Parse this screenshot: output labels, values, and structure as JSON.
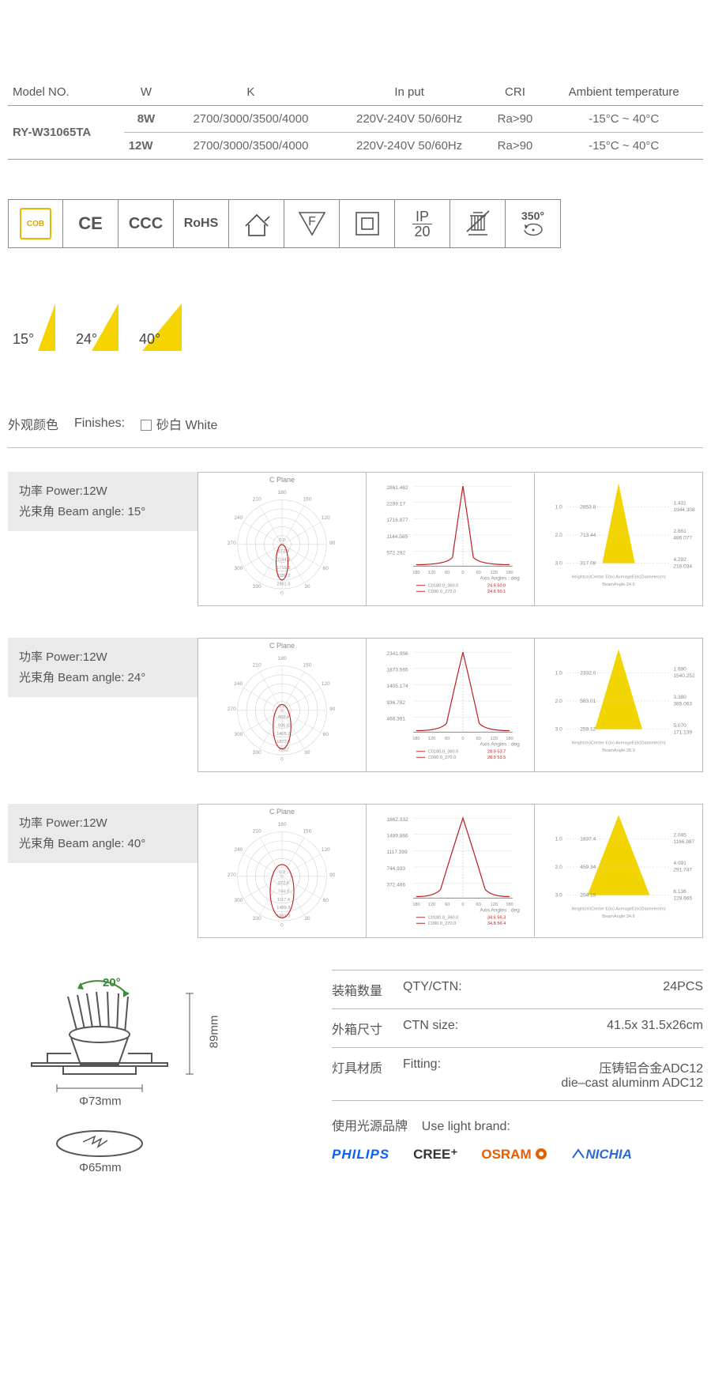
{
  "spec_table": {
    "headers": [
      "Model NO.",
      "W",
      "K",
      "In put",
      "CRI",
      "Ambient temperature"
    ],
    "model_no": "RY-W31065TA",
    "rows": [
      {
        "w": "8W",
        "k": "2700/3000/3500/4000",
        "input": "220V-240V 50/60Hz",
        "cri": "Ra>90",
        "ambient": "-15°C ~ 40°C"
      },
      {
        "w": "12W",
        "k": "2700/3000/3500/4000",
        "input": "220V-240V 50/60Hz",
        "cri": "Ra>90",
        "ambient": "-15°C ~ 40°C"
      }
    ]
  },
  "cert_icons": {
    "cob": "COB",
    "ce": "CE",
    "ccc": "CCC",
    "rohs": "RoHS",
    "indoor": "indoor-use-icon",
    "f": "F",
    "class2": "class-ii-icon",
    "ip": "IP",
    "ip_num": "20",
    "weee": "weee-icon",
    "rot": "350°"
  },
  "beam_angles": [
    {
      "label": "15°",
      "angle": 15,
      "color": "#f5d400"
    },
    {
      "label": "24°",
      "angle": 24,
      "color": "#f5d400"
    },
    {
      "label": "40°",
      "angle": 40,
      "color": "#f5d400"
    }
  ],
  "finishes": {
    "cn": "外观颜色",
    "en": "Finishes:",
    "opt_cn": "砂白",
    "opt_en": "White"
  },
  "photo": [
    {
      "power_cn": "功率 Power:12W",
      "beam_cn": "光束角 Beam angle: 15°",
      "polar": {
        "title": "C Plane",
        "rings": [
          572.3,
          1144.3,
          1715.8,
          2289.2,
          2861.5
        ],
        "deg_labels": [
          "180",
          "150",
          "120",
          "90",
          "60",
          "30",
          "0",
          "330",
          "300",
          "270",
          "240",
          "210"
        ]
      },
      "curve": {
        "y": [
          2861.462,
          2289.17,
          1716.877,
          1144.585,
          572.292
        ],
        "x": [
          "180",
          "120",
          "60",
          "0",
          "60",
          "120",
          "180"
        ],
        "axis_label": "Axis Angles : deg",
        "legend": [
          "C0180.0_360.0",
          "C090.0_270.0"
        ],
        "legend_color": "#c02020",
        "val1": "24.6  50.0",
        "val2": "24.6  50.1"
      },
      "cone": {
        "color": "#f2d400",
        "rows": [
          {
            "h": "1.0",
            "c": "2853.8",
            "a": "1.431",
            "d": "1944.308"
          },
          {
            "h": "2.0",
            "c": "713.44",
            "a": "2.861",
            "d": "486.077"
          },
          {
            "h": "3.0",
            "c": "317.08",
            "a": "4.292",
            "d": "216.034"
          }
        ],
        "foot": "Height(m)Center E(lx)   AverageE(lx)Diameter(m)",
        "beam": "BeamAngle:24.6"
      }
    },
    {
      "power_cn": "功率 Power:12W",
      "beam_cn": "光束角 Beam angle: 24°",
      "polar": {
        "title": "C Plane",
        "rings": [
          468.4,
          936.8,
          1405.2,
          1873.6,
          2342.0
        ],
        "deg_labels": [
          "180",
          "150",
          "120",
          "90",
          "60",
          "30",
          "0",
          "330",
          "300",
          "270",
          "240",
          "210"
        ]
      },
      "curve": {
        "y": [
          2341.956,
          1873.565,
          1405.174,
          936.782,
          468.391
        ],
        "x": [
          "180",
          "120",
          "60",
          "0",
          "60",
          "120",
          "180"
        ],
        "axis_label": "Axis Angles : deg",
        "legend": [
          "C0180.0_360.0",
          "C090.0_270.0"
        ],
        "legend_color": "#c02020",
        "val1": "28.9  53.7",
        "val2": "28.9  53.5"
      },
      "cone": {
        "color": "#f2d400",
        "rows": [
          {
            "h": "1.0",
            "c": "2332.0",
            "a": "1.690",
            "d": "1540.252"
          },
          {
            "h": "2.0",
            "c": "583.01",
            "a": "3.380",
            "d": "385.063"
          },
          {
            "h": "3.0",
            "c": "259.12",
            "a": "5.070",
            "d": "171.139"
          }
        ],
        "foot": "Height(m)Center E(lx)   AverageE(lx)Diameter(m)",
        "beam": "BeamAngle:28.9"
      }
    },
    {
      "power_cn": "功率 Power:12W",
      "beam_cn": "光束角 Beam angle: 40°",
      "polar": {
        "title": "C Plane",
        "rings": [
          372.5,
          744.9,
          1117.4,
          1489.9,
          1862.3
        ],
        "deg_labels": [
          "180",
          "150",
          "120",
          "90",
          "60",
          "30",
          "0",
          "330",
          "300",
          "270",
          "240",
          "210"
        ]
      },
      "curve": {
        "y": [
          1862.332,
          1489.866,
          1117.399,
          744.933,
          372.466
        ],
        "x": [
          "180",
          "120",
          "60",
          "0",
          "60",
          "120",
          "180"
        ],
        "axis_label": "Axis Angles : deg",
        "legend": [
          "C0180.0_360.0",
          "C090.0_270.0"
        ],
        "legend_color": "#c02020",
        "val1": "34.6  56.3",
        "val2": "34.8  56.4"
      },
      "cone": {
        "color": "#f2d400",
        "rows": [
          {
            "h": "1.0",
            "c": "1837.4",
            "a": "2.045",
            "d": "1166.987"
          },
          {
            "h": "2.0",
            "c": "459.34",
            "a": "4.091",
            "d": "291.747"
          },
          {
            "h": "3.0",
            "c": "204.15",
            "a": "6.136",
            "d": "129.665"
          }
        ],
        "foot": "Height(m)Center E(lx)   AverageE(lx)Diameter(m)",
        "beam": "BeamAngle:34.6"
      }
    }
  ],
  "dimensions": {
    "tilt": "20°",
    "height": "89mm",
    "face": "Φ73mm",
    "cutout": "Φ65mm",
    "tilt_color": "#3a8a3a",
    "line_color": "#555"
  },
  "info": [
    {
      "cn": "装箱数量",
      "en": "QTY/CTN:",
      "val": "24PCS"
    },
    {
      "cn": "外箱尺寸",
      "en": "CTN size:",
      "val": "41.5x 31.5x26cm"
    },
    {
      "cn": "灯具材质",
      "en": "Fitting:",
      "val": "压铸铝合金ADC12\ndie–cast aluminm ADC12"
    }
  ],
  "brands": {
    "cn": "使用光源品牌",
    "en": "Use light brand:",
    "list": [
      "PHILIPS",
      "CREE⁺",
      "OSRAM",
      "NICHIA"
    ]
  }
}
